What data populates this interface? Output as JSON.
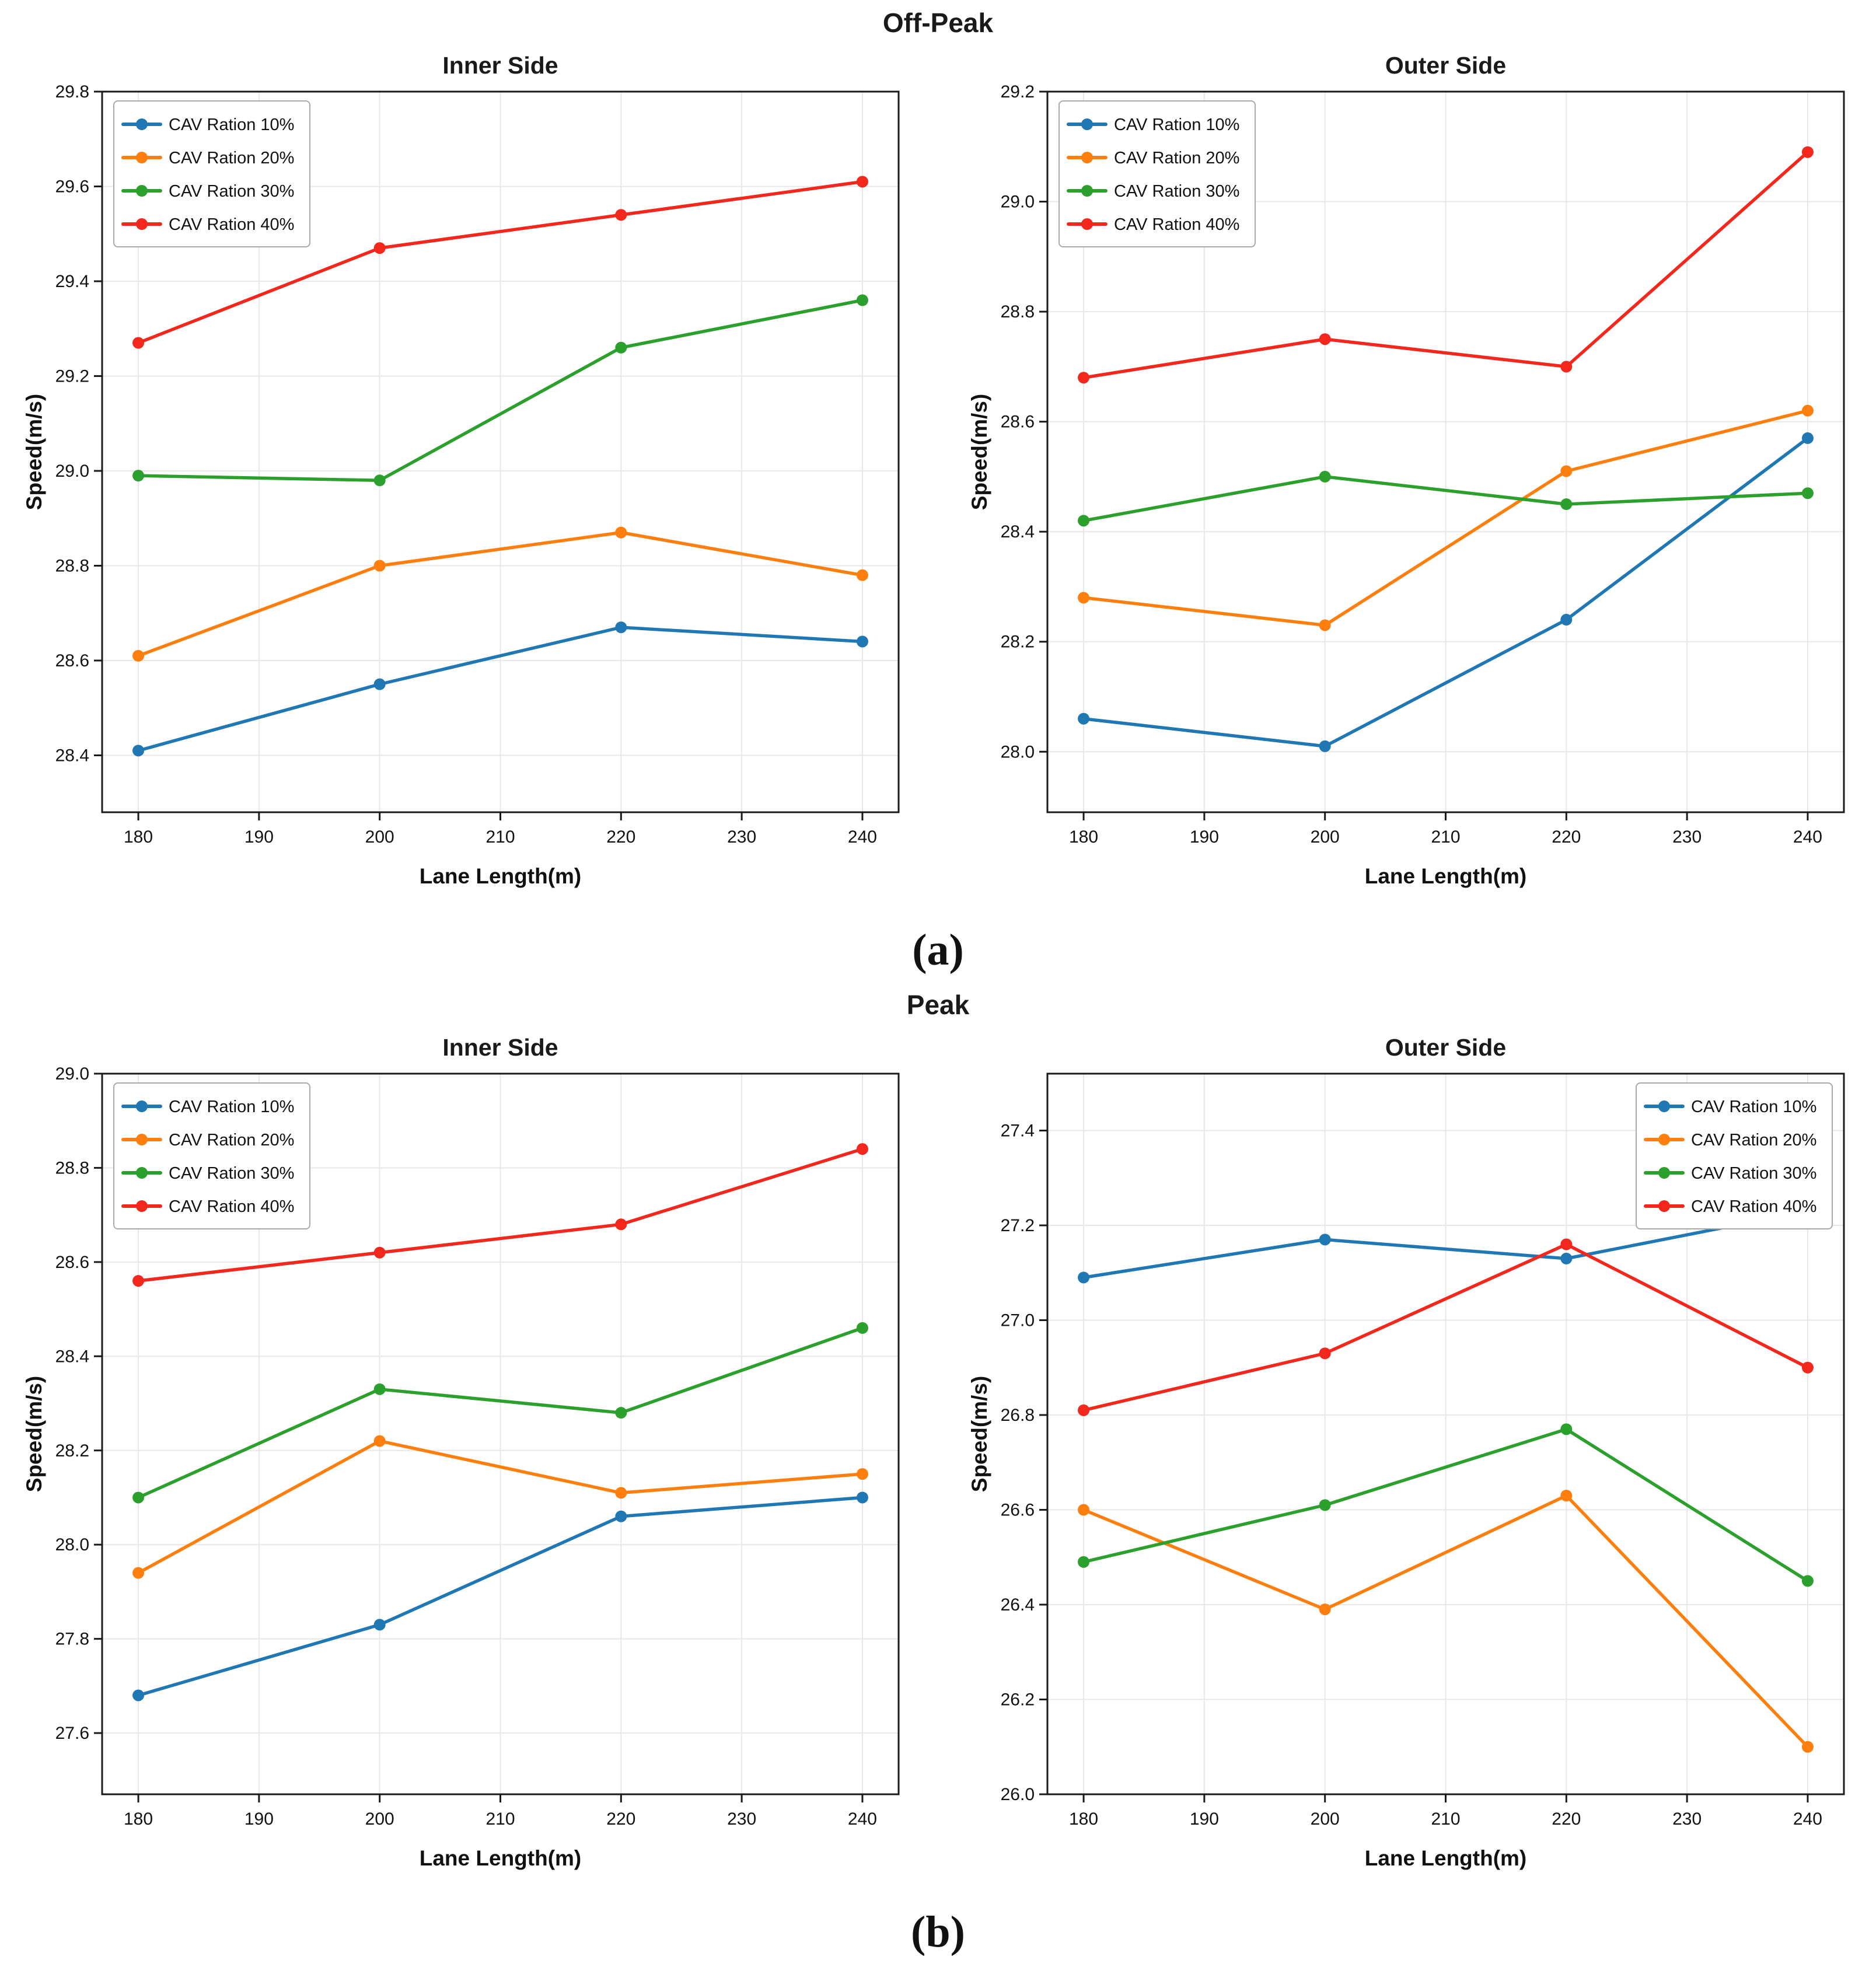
{
  "figure": {
    "panel_a_label": "(a)",
    "panel_b_label": "(b)",
    "rows": [
      {
        "title": "Off-Peak"
      },
      {
        "title": "Peak"
      }
    ]
  },
  "style": {
    "series_colors": {
      "cav10": "#1f77b4",
      "cav20": "#ff7f0e",
      "cav30": "#2ca02c",
      "cav40": "#f4271c"
    },
    "grid_color": "#e8e8e8",
    "spine_color": "#1a1a1a",
    "legend_border_color": "#aaaaaa"
  },
  "chart_data": [
    {
      "type": "line",
      "group": "Off-Peak",
      "title": "Inner Side",
      "xlabel": "Lane Length(m)",
      "ylabel": "Speed(m/s)",
      "x": [
        180,
        200,
        220,
        240
      ],
      "xticks": [
        180,
        190,
        200,
        210,
        220,
        230,
        240
      ],
      "yticks": [
        28.4,
        28.6,
        28.8,
        29.0,
        29.2,
        29.4,
        29.6,
        29.8
      ],
      "xlim": [
        177,
        243
      ],
      "ylim": [
        28.28,
        29.8
      ],
      "grid": true,
      "legend_position": "top-left",
      "series": [
        {
          "name": "CAV Ration 10%",
          "color": "#1f77b4",
          "values": [
            28.41,
            28.55,
            28.67,
            28.64
          ]
        },
        {
          "name": "CAV Ration 20%",
          "color": "#ff7f0e",
          "values": [
            28.61,
            28.8,
            28.87,
            28.78
          ]
        },
        {
          "name": "CAV Ration 30%",
          "color": "#2ca02c",
          "values": [
            28.99,
            28.98,
            29.26,
            29.36
          ]
        },
        {
          "name": "CAV Ration 40%",
          "color": "#f4271c",
          "values": [
            29.27,
            29.47,
            29.54,
            29.61
          ]
        }
      ]
    },
    {
      "type": "line",
      "group": "Off-Peak",
      "title": "Outer Side",
      "xlabel": "Lane Length(m)",
      "ylabel": "Speed(m/s)",
      "x": [
        180,
        200,
        220,
        240
      ],
      "xticks": [
        180,
        190,
        200,
        210,
        220,
        230,
        240
      ],
      "yticks": [
        28.0,
        28.2,
        28.4,
        28.6,
        28.8,
        29.0,
        29.2
      ],
      "xlim": [
        177,
        243
      ],
      "ylim": [
        27.89,
        29.2
      ],
      "grid": true,
      "legend_position": "top-left",
      "series": [
        {
          "name": "CAV Ration 10%",
          "color": "#1f77b4",
          "values": [
            28.06,
            28.01,
            28.24,
            28.57
          ]
        },
        {
          "name": "CAV Ration 20%",
          "color": "#ff7f0e",
          "values": [
            28.28,
            28.23,
            28.51,
            28.62
          ]
        },
        {
          "name": "CAV Ration 30%",
          "color": "#2ca02c",
          "values": [
            28.42,
            28.5,
            28.45,
            28.47
          ]
        },
        {
          "name": "CAV Ration 40%",
          "color": "#f4271c",
          "values": [
            28.68,
            28.75,
            28.7,
            29.09
          ]
        }
      ]
    },
    {
      "type": "line",
      "group": "Peak",
      "title": "Inner Side",
      "xlabel": "Lane Length(m)",
      "ylabel": "Speed(m/s)",
      "x": [
        180,
        200,
        220,
        240
      ],
      "xticks": [
        180,
        190,
        200,
        210,
        220,
        230,
        240
      ],
      "yticks": [
        27.6,
        27.8,
        28.0,
        28.2,
        28.4,
        28.6,
        28.8,
        29.0
      ],
      "xlim": [
        177,
        243
      ],
      "ylim": [
        27.47,
        29.0
      ],
      "grid": true,
      "legend_position": "top-left",
      "series": [
        {
          "name": "CAV Ration 10%",
          "color": "#1f77b4",
          "values": [
            27.68,
            27.83,
            28.06,
            28.1
          ]
        },
        {
          "name": "CAV Ration 20%",
          "color": "#ff7f0e",
          "values": [
            27.94,
            28.22,
            28.11,
            28.15
          ]
        },
        {
          "name": "CAV Ration 30%",
          "color": "#2ca02c",
          "values": [
            28.1,
            28.33,
            28.28,
            28.46
          ]
        },
        {
          "name": "CAV Ration 40%",
          "color": "#f4271c",
          "values": [
            28.56,
            28.62,
            28.68,
            28.84
          ]
        }
      ]
    },
    {
      "type": "line",
      "group": "Peak",
      "title": "Outer Side",
      "xlabel": "Lane Length(m)",
      "ylabel": "Speed(m/s)",
      "x": [
        180,
        200,
        220,
        240
      ],
      "xticks": [
        180,
        190,
        200,
        210,
        220,
        230,
        240
      ],
      "yticks": [
        26.0,
        26.2,
        26.4,
        26.6,
        26.8,
        27.0,
        27.2,
        27.4
      ],
      "xlim": [
        177,
        243
      ],
      "ylim": [
        26.0,
        27.52
      ],
      "grid": true,
      "legend_position": "top-right",
      "series": [
        {
          "name": "CAV Ration 10%",
          "color": "#1f77b4",
          "values": [
            27.09,
            27.17,
            27.13,
            27.23
          ]
        },
        {
          "name": "CAV Ration 20%",
          "color": "#ff7f0e",
          "values": [
            26.6,
            26.39,
            26.63,
            26.1
          ]
        },
        {
          "name": "CAV Ration 30%",
          "color": "#2ca02c",
          "values": [
            26.49,
            26.61,
            26.77,
            26.45
          ]
        },
        {
          "name": "CAV Ration 40%",
          "color": "#f4271c",
          "values": [
            26.81,
            26.93,
            27.16,
            26.9
          ]
        }
      ]
    }
  ]
}
